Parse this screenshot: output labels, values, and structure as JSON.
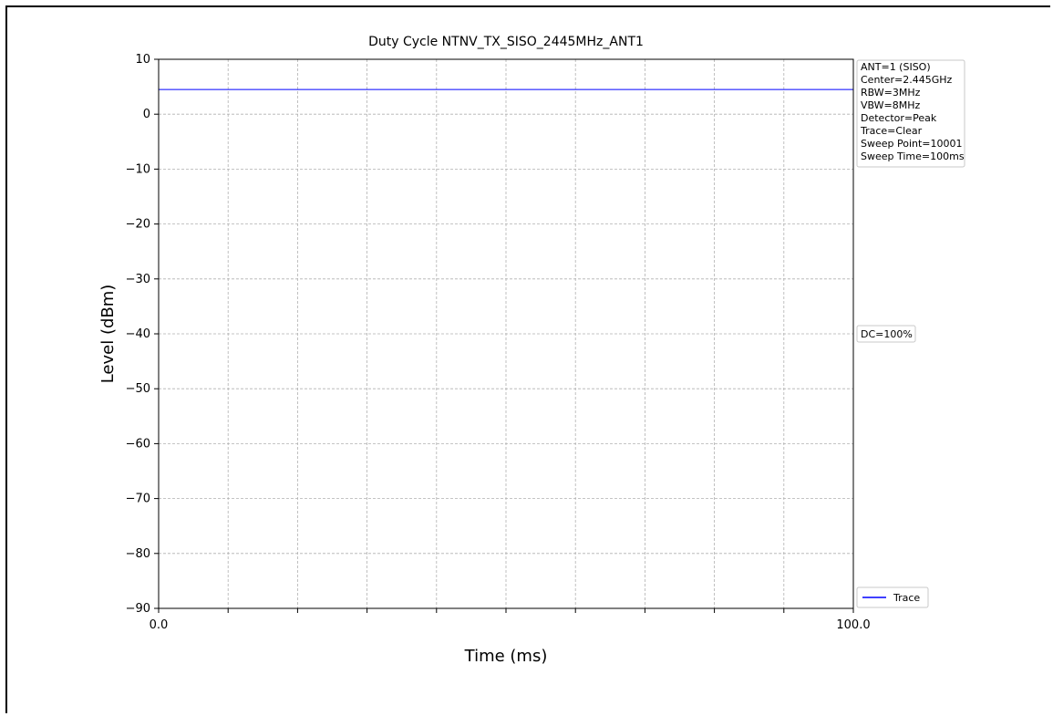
{
  "chart_data": {
    "type": "line",
    "title": "Duty Cycle NTNV_TX_SISO_2445MHz_ANT1",
    "xlabel": "Time (ms)",
    "ylabel": "Level (dBm)",
    "xlim": [
      0,
      100
    ],
    "ylim": [
      -90,
      10
    ],
    "x_tick_labels": [
      {
        "value": 0,
        "label": "0.0"
      },
      {
        "value": 100,
        "label": "100.0"
      }
    ],
    "x_minor_ticks": [
      10,
      20,
      30,
      40,
      50,
      60,
      70,
      80,
      90
    ],
    "y_ticks": [
      10,
      0,
      -10,
      -20,
      -30,
      -40,
      -50,
      -60,
      -70,
      -80,
      -90
    ],
    "grid": true,
    "series": [
      {
        "name": "Trace",
        "color": "#0000ff",
        "x": [
          0,
          100
        ],
        "y": [
          4.5,
          4.5
        ]
      }
    ],
    "legend_placement": "lower-right",
    "settings_box": [
      "ANT=1 (SISO)",
      "Center=2.445GHz",
      "RBW=3MHz",
      "VBW=8MHz",
      "Detector=Peak",
      "Trace=Clear",
      "Sweep Point=10001",
      "Sweep Time=100ms"
    ],
    "annotation": {
      "text": "DC=100%",
      "y": -40
    }
  }
}
